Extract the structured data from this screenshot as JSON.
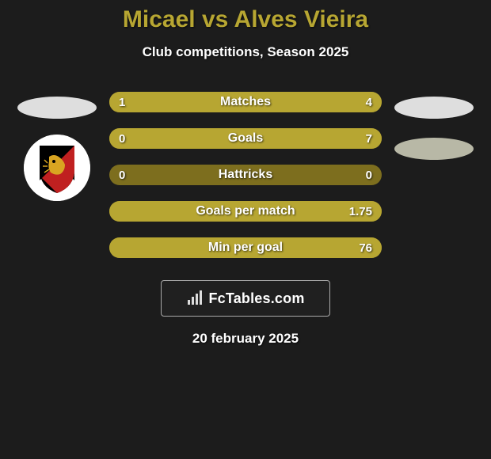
{
  "title": {
    "player1": "Micael",
    "player2": "Alves Vieira",
    "sep": "vs",
    "color": "#b7a632"
  },
  "subtitle": "Club competitions, Season 2025",
  "left_avatar": {
    "ellipse_color": "#dedede",
    "circle_bg": "#ffffff",
    "shield": {
      "top_color": "#000000",
      "bottom_color": "#c02020",
      "lion_color": "#d9a521"
    }
  },
  "right_avatar": {
    "ellipse1_color": "#dedede",
    "ellipse2_color": "#b8b8a6"
  },
  "bars": {
    "bar_bg": "#7d6e1e",
    "fill_color": "#b7a632",
    "height": 26,
    "radius": 13,
    "rows": [
      {
        "label": "Matches",
        "left_val": "1",
        "right_val": "4",
        "left_pct": 20,
        "right_pct": 80
      },
      {
        "label": "Goals",
        "left_val": "0",
        "right_val": "7",
        "left_pct": 2,
        "right_pct": 98
      },
      {
        "label": "Hattricks",
        "left_val": "0",
        "right_val": "0",
        "left_pct": 0,
        "right_pct": 0
      },
      {
        "label": "Goals per match",
        "left_val": "",
        "right_val": "1.75",
        "left_pct": 2,
        "right_pct": 98
      },
      {
        "label": "Min per goal",
        "left_val": "",
        "right_val": "76",
        "left_pct": 2,
        "right_pct": 98
      }
    ]
  },
  "logo_text": "FcTables.com",
  "date_text": "20 february 2025"
}
